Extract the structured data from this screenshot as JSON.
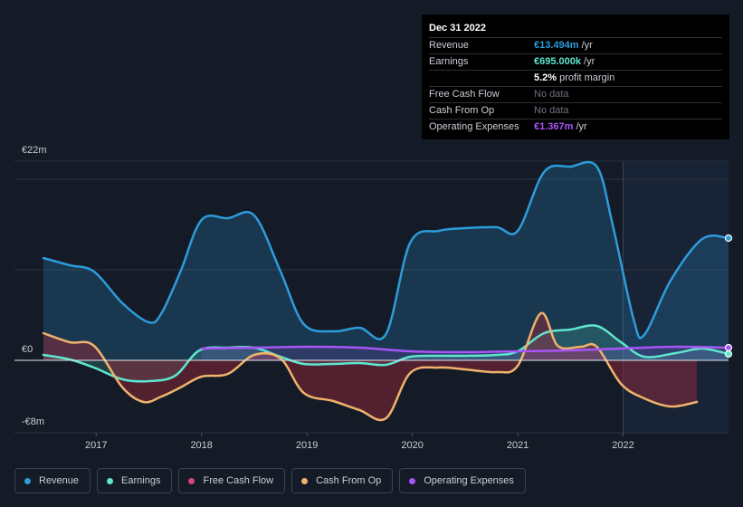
{
  "tooltip": {
    "date": "Dec 31 2022",
    "rows": [
      {
        "label": "Revenue",
        "value": "€13.494m",
        "suffix": " /yr",
        "color": "#2d9cdb"
      },
      {
        "label": "Earnings",
        "value": "€695.000k",
        "suffix": " /yr",
        "color": "#5ee6cf"
      },
      {
        "label": "",
        "value": "5.2%",
        "suffix": " profit margin",
        "color": "#ffffff"
      },
      {
        "label": "Free Cash Flow",
        "value": "No data",
        "suffix": "",
        "color": "#6b7280"
      },
      {
        "label": "Cash From Op",
        "value": "No data",
        "suffix": "",
        "color": "#6b7280"
      },
      {
        "label": "Operating Expenses",
        "value": "€1.367m",
        "suffix": " /yr",
        "color": "#a855f7"
      }
    ]
  },
  "legend": [
    {
      "label": "Revenue",
      "color": "#2d9cdb"
    },
    {
      "label": "Earnings",
      "color": "#5ee6cf"
    },
    {
      "label": "Free Cash Flow",
      "color": "#d6457c"
    },
    {
      "label": "Cash From Op",
      "color": "#f0b36b"
    },
    {
      "label": "Operating Expenses",
      "color": "#a855f7"
    }
  ],
  "chart_data": {
    "type": "area",
    "title": "",
    "xlabel": "",
    "ylabel": "",
    "y_top_label": "€22m",
    "y_zero_label": "€0",
    "y_bottom_label": "-€8m",
    "ylim": [
      -8,
      22
    ],
    "xlim": [
      2016.5,
      2023.0
    ],
    "x_ticks": [
      2017,
      2018,
      2019,
      2020,
      2021,
      2022
    ],
    "x_tick_labels": [
      "2017",
      "2018",
      "2019",
      "2020",
      "2021",
      "2022"
    ],
    "highlight_start": 2022.0,
    "series": [
      {
        "name": "Revenue",
        "color": "#2d9cdb",
        "points": [
          [
            2016.5,
            11.3
          ],
          [
            2016.75,
            10.5
          ],
          [
            2016.98,
            9.8
          ],
          [
            2017.25,
            6.3
          ],
          [
            2017.5,
            4.2
          ],
          [
            2017.62,
            5.2
          ],
          [
            2017.8,
            9.8
          ],
          [
            2018.0,
            15.5
          ],
          [
            2018.25,
            15.7
          ],
          [
            2018.5,
            16.0
          ],
          [
            2018.75,
            9.8
          ],
          [
            2018.97,
            4.0
          ],
          [
            2019.25,
            3.2
          ],
          [
            2019.5,
            3.6
          ],
          [
            2019.75,
            2.9
          ],
          [
            2019.98,
            13.0
          ],
          [
            2020.25,
            14.3
          ],
          [
            2020.5,
            14.6
          ],
          [
            2020.8,
            14.7
          ],
          [
            2021.0,
            14.3
          ],
          [
            2021.25,
            20.8
          ],
          [
            2021.5,
            21.4
          ],
          [
            2021.75,
            21.4
          ],
          [
            2021.9,
            15.0
          ],
          [
            2022.1,
            4.5
          ],
          [
            2022.2,
            2.8
          ],
          [
            2022.45,
            8.8
          ],
          [
            2022.75,
            13.4
          ],
          [
            2023.0,
            13.5
          ]
        ]
      },
      {
        "name": "Earnings",
        "color": "#5ee6cf",
        "points": [
          [
            2016.5,
            0.6
          ],
          [
            2016.75,
            0.1
          ],
          [
            2016.98,
            -0.8
          ],
          [
            2017.25,
            -2.1
          ],
          [
            2017.5,
            -2.3
          ],
          [
            2017.75,
            -1.7
          ],
          [
            2017.98,
            1.1
          ],
          [
            2018.25,
            1.4
          ],
          [
            2018.5,
            1.4
          ],
          [
            2018.75,
            0.4
          ],
          [
            2018.97,
            -0.4
          ],
          [
            2019.25,
            -0.4
          ],
          [
            2019.5,
            -0.3
          ],
          [
            2019.75,
            -0.5
          ],
          [
            2019.98,
            0.4
          ],
          [
            2020.25,
            0.5
          ],
          [
            2020.5,
            0.5
          ],
          [
            2020.8,
            0.6
          ],
          [
            2021.0,
            1.0
          ],
          [
            2021.25,
            3.0
          ],
          [
            2021.5,
            3.4
          ],
          [
            2021.75,
            3.8
          ],
          [
            2021.98,
            2.0
          ],
          [
            2022.2,
            0.4
          ],
          [
            2022.5,
            0.8
          ],
          [
            2022.75,
            1.3
          ],
          [
            2023.0,
            0.7
          ]
        ]
      },
      {
        "name": "Cash From Op",
        "color": "#f0b36b",
        "points": [
          [
            2016.5,
            3.0
          ],
          [
            2016.75,
            2.0
          ],
          [
            2016.98,
            1.6
          ],
          [
            2017.25,
            -3.0
          ],
          [
            2017.45,
            -4.6
          ],
          [
            2017.62,
            -4.0
          ],
          [
            2017.8,
            -3.0
          ],
          [
            2018.0,
            -1.8
          ],
          [
            2018.25,
            -1.5
          ],
          [
            2018.5,
            0.6
          ],
          [
            2018.75,
            0.2
          ],
          [
            2018.97,
            -3.6
          ],
          [
            2019.25,
            -4.5
          ],
          [
            2019.5,
            -5.5
          ],
          [
            2019.75,
            -6.4
          ],
          [
            2019.98,
            -1.4
          ],
          [
            2020.25,
            -0.8
          ],
          [
            2020.5,
            -1.0
          ],
          [
            2020.8,
            -1.3
          ],
          [
            2021.0,
            -0.6
          ],
          [
            2021.22,
            5.2
          ],
          [
            2021.38,
            1.6
          ],
          [
            2021.6,
            1.5
          ],
          [
            2021.75,
            1.5
          ],
          [
            2021.98,
            -2.6
          ],
          [
            2022.2,
            -4.2
          ],
          [
            2022.45,
            -5.1
          ],
          [
            2022.7,
            -4.6
          ]
        ]
      },
      {
        "name": "Operating Expenses",
        "color": "#a855f7",
        "points": [
          [
            2018.0,
            1.3
          ],
          [
            2018.5,
            1.4
          ],
          [
            2019.0,
            1.5
          ],
          [
            2019.5,
            1.4
          ],
          [
            2019.98,
            1.0
          ],
          [
            2020.5,
            0.9
          ],
          [
            2021.0,
            1.0
          ],
          [
            2021.5,
            1.1
          ],
          [
            2021.98,
            1.3
          ],
          [
            2022.5,
            1.5
          ],
          [
            2023.0,
            1.4
          ]
        ]
      }
    ]
  }
}
